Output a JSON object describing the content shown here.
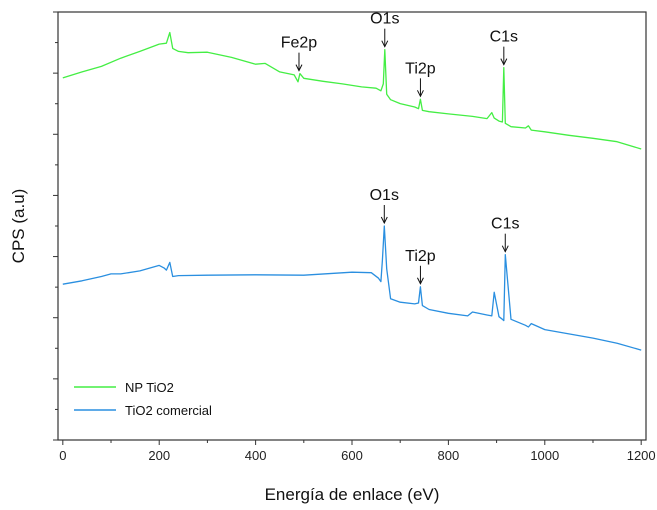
{
  "chart_data": {
    "type": "line",
    "xlabel": "Energía de enlace (eV)",
    "ylabel": "CPS (a.u)",
    "xlim": [
      -10,
      1210
    ],
    "ylim": [
      0,
      1
    ],
    "x_ticks": [
      0,
      200,
      400,
      600,
      800,
      1000,
      1200
    ],
    "x_tick_labels": [
      "0",
      "200",
      "400",
      "600",
      "800",
      "1000",
      "1200"
    ],
    "y_ticks_shown": false,
    "grid": false,
    "legend_position": "bottom-left",
    "colors": {
      "NP TiO2": "#44ee44",
      "TiO2 comercial": "#2a8fe0"
    },
    "series": [
      {
        "name": "NP TiO2",
        "x": [
          0,
          40,
          80,
          120,
          160,
          200,
          215,
          222,
          228,
          240,
          260,
          300,
          350,
          400,
          420,
          450,
          480,
          488,
          492,
          500,
          540,
          580,
          620,
          650,
          660,
          665,
          668,
          672,
          680,
          700,
          730,
          738,
          742,
          746,
          760,
          800,
          850,
          880,
          890,
          895,
          905,
          912,
          915,
          918,
          930,
          960,
          966,
          972,
          1000,
          1050,
          1100,
          1150,
          1200
        ],
        "y": [
          0.846,
          0.86,
          0.873,
          0.892,
          0.908,
          0.925,
          0.927,
          0.952,
          0.915,
          0.908,
          0.905,
          0.906,
          0.894,
          0.878,
          0.88,
          0.86,
          0.853,
          0.837,
          0.856,
          0.845,
          0.838,
          0.832,
          0.825,
          0.822,
          0.816,
          0.832,
          0.912,
          0.808,
          0.795,
          0.786,
          0.778,
          0.774,
          0.796,
          0.77,
          0.767,
          0.762,
          0.756,
          0.751,
          0.765,
          0.752,
          0.745,
          0.743,
          0.87,
          0.74,
          0.732,
          0.729,
          0.734,
          0.724,
          0.72,
          0.712,
          0.705,
          0.697,
          0.68
        ]
      },
      {
        "name": "TiO2 comercial",
        "x": [
          0,
          40,
          80,
          100,
          120,
          160,
          200,
          210,
          215,
          222,
          228,
          240,
          300,
          400,
          500,
          600,
          640,
          655,
          660,
          663,
          667,
          672,
          680,
          700,
          730,
          738,
          742,
          746,
          760,
          800,
          840,
          850,
          880,
          890,
          895,
          905,
          912,
          915,
          918,
          930,
          960,
          966,
          972,
          1000,
          1050,
          1100,
          1150,
          1200
        ],
        "y": [
          0.364,
          0.372,
          0.382,
          0.388,
          0.388,
          0.395,
          0.408,
          0.402,
          0.397,
          0.415,
          0.382,
          0.384,
          0.385,
          0.386,
          0.385,
          0.392,
          0.391,
          0.378,
          0.37,
          0.42,
          0.5,
          0.4,
          0.33,
          0.322,
          0.318,
          0.32,
          0.358,
          0.314,
          0.305,
          0.296,
          0.29,
          0.299,
          0.292,
          0.29,
          0.345,
          0.288,
          0.282,
          0.279,
          0.433,
          0.282,
          0.268,
          0.264,
          0.272,
          0.258,
          0.248,
          0.238,
          0.226,
          0.21
        ]
      }
    ],
    "annotations": [
      {
        "label": "Fe2p",
        "x": 490,
        "series": "NP TiO2"
      },
      {
        "label": "O1s",
        "x": 668,
        "series": "NP TiO2"
      },
      {
        "label": "Ti2p",
        "x": 742,
        "series": "NP TiO2"
      },
      {
        "label": "C1s",
        "x": 915,
        "series": "NP TiO2"
      },
      {
        "label": "O1s",
        "x": 667,
        "series": "TiO2 comercial"
      },
      {
        "label": "Ti2p",
        "x": 742,
        "series": "TiO2 comercial"
      },
      {
        "label": "C1s",
        "x": 918,
        "series": "TiO2 comercial"
      }
    ]
  }
}
